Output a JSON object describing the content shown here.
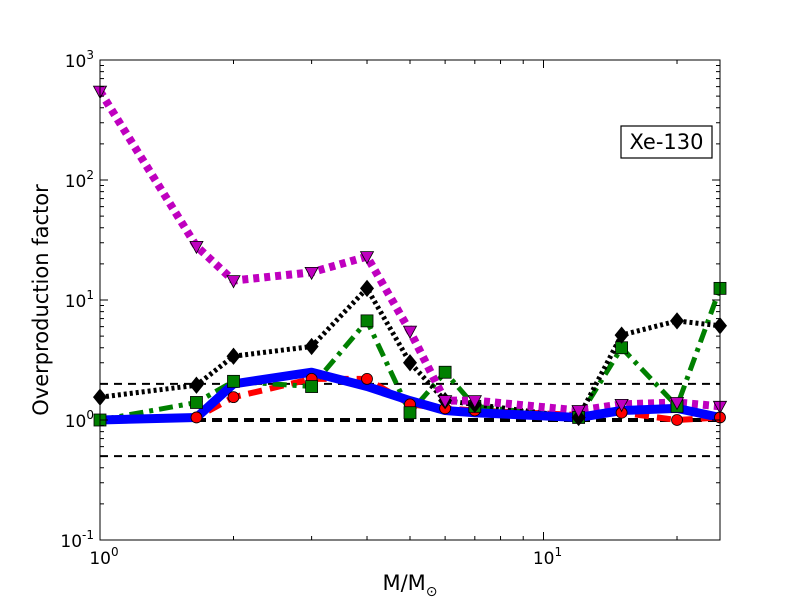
{
  "chart_data": {
    "type": "line",
    "title": "",
    "annotation": "Xe-130",
    "xlabel": "M/M",
    "xlabel_subscript": "⊙",
    "ylabel": "Overproduction factor",
    "xscale": "log",
    "yscale": "log",
    "xlim": [
      1,
      25
    ],
    "ylim": [
      0.1,
      1000
    ],
    "grid": false,
    "x_ticks": [
      {
        "value": 1,
        "label": "10",
        "exp": "0"
      },
      {
        "value": 10,
        "label": "10",
        "exp": "1"
      }
    ],
    "y_ticks": [
      {
        "value": 0.1,
        "label": "10",
        "exp": "-1"
      },
      {
        "value": 1,
        "label": "10",
        "exp": "0"
      },
      {
        "value": 10,
        "label": "10",
        "exp": "1"
      },
      {
        "value": 100,
        "label": "10",
        "exp": "2"
      },
      {
        "value": 1000,
        "label": "10",
        "exp": "3"
      }
    ],
    "reference_lines": [
      {
        "y": 2.0,
        "style": "dashed",
        "color": "#000000",
        "weight": "thin"
      },
      {
        "y": 1.0,
        "style": "dashed",
        "color": "#000000",
        "weight": "thick"
      },
      {
        "y": 0.5,
        "style": "dashed",
        "color": "#000000",
        "weight": "thin"
      }
    ],
    "series": [
      {
        "color": "#ff0000",
        "line_style": "dashed",
        "marker": "circle",
        "x": [
          1,
          1.65,
          2,
          3,
          4,
          5,
          6,
          7,
          12,
          15,
          20,
          25
        ],
        "y": [
          1.0,
          1.05,
          1.55,
          2.2,
          2.2,
          1.35,
          1.25,
          1.2,
          1.1,
          1.15,
          1.0,
          1.05
        ]
      },
      {
        "color": "#008000",
        "line_style": "dashdot",
        "marker": "square",
        "x": [
          1,
          1.65,
          2,
          3,
          4,
          5,
          6,
          7,
          12,
          15,
          20,
          25
        ],
        "y": [
          1.0,
          1.4,
          2.1,
          1.9,
          6.7,
          1.15,
          2.5,
          1.3,
          1.05,
          4.0,
          1.3,
          12.5
        ]
      },
      {
        "color": "#000000",
        "line_style": "dotted",
        "marker": "diamond",
        "x": [
          1,
          1.65,
          2,
          3,
          4,
          5,
          6,
          7,
          12,
          15,
          20,
          25
        ],
        "y": [
          1.55,
          1.95,
          3.4,
          4.1,
          12.5,
          3.0,
          1.45,
          1.35,
          1.05,
          5.1,
          6.7,
          6.1
        ]
      },
      {
        "color": "#bf00bf",
        "line_style": "dotted-thick",
        "marker": "triangle-down",
        "x": [
          1,
          1.65,
          2,
          3,
          4,
          5,
          6,
          7,
          12,
          15,
          20,
          25
        ],
        "y": [
          550,
          28,
          14.5,
          17,
          23,
          5.5,
          1.45,
          1.45,
          1.2,
          1.35,
          1.4,
          1.3
        ]
      },
      {
        "color": "#0000ff",
        "line_style": "solid-thick",
        "marker": "none",
        "x": [
          1,
          1.65,
          2,
          3,
          4,
          5,
          6,
          7,
          12,
          15,
          20,
          25
        ],
        "y": [
          1.0,
          1.05,
          2.0,
          2.5,
          1.9,
          1.45,
          1.2,
          1.15,
          1.05,
          1.2,
          1.25,
          1.05
        ]
      }
    ]
  }
}
